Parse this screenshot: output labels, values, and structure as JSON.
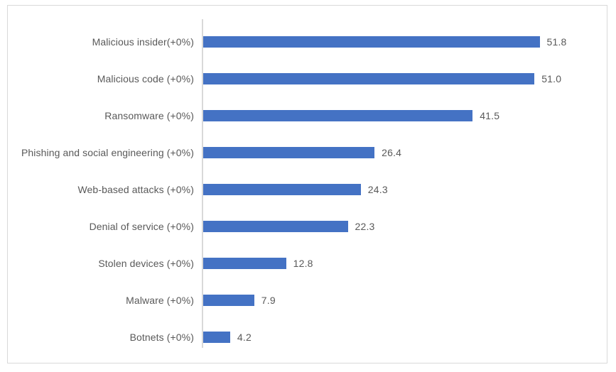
{
  "chart_data": {
    "type": "bar",
    "orientation": "horizontal",
    "title": "",
    "xlabel": "",
    "ylabel": "",
    "grid": false,
    "legend": false,
    "xlim": [
      0,
      60
    ],
    "categories": [
      "Malicious insider(+0%)",
      "Malicious code (+0%)",
      "Ransomware (+0%)",
      "Phishing and social engineering (+0%)",
      "Web-based attacks (+0%)",
      "Denial of service (+0%)",
      "Stolen devices (+0%)",
      "Malware (+0%)",
      "Botnets (+0%)"
    ],
    "values": [
      51.8,
      51.0,
      41.5,
      26.4,
      24.3,
      22.3,
      12.8,
      7.9,
      4.2
    ],
    "value_labels": [
      "51.8",
      "51.0",
      "41.5",
      "26.4",
      "24.3",
      "22.3",
      "12.8",
      "7.9",
      "4.2"
    ],
    "colors": {
      "bar": "#4472C4",
      "category_label": "#595959",
      "value_label": "#595959",
      "axis_line": "#D9D9D9",
      "frame_border": "#D9D9D9",
      "background": "#FFFFFF"
    }
  }
}
